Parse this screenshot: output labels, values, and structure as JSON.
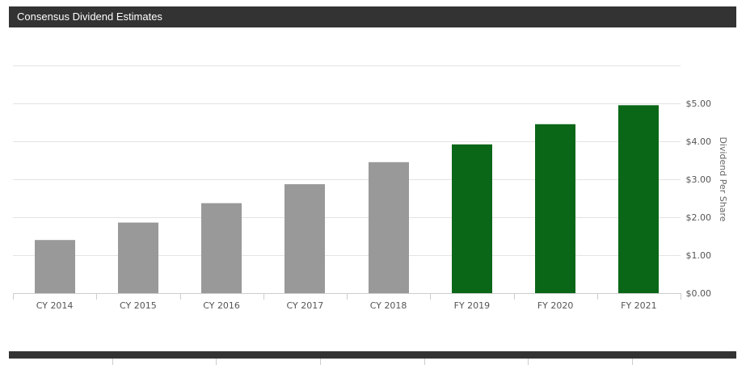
{
  "header": {
    "title": "Consensus Dividend Estimates"
  },
  "colors": {
    "historical": "#999999",
    "estimate": "#0b6718",
    "header_bg": "#333333",
    "grid": "#e3e3e3"
  },
  "chart_data": {
    "type": "bar",
    "title": "Consensus Dividend Estimates",
    "xlabel": "",
    "ylabel": "Dividend Per Share",
    "ylim": [
      0,
      6
    ],
    "yticks": [
      0,
      1,
      2,
      3,
      4,
      5
    ],
    "ytick_labels": [
      "$0.00",
      "$1.00",
      "$2.00",
      "$3.00",
      "$4.00",
      "$5.00"
    ],
    "y_axis_position": "right",
    "grid": true,
    "categories": [
      "CY 2014",
      "CY 2015",
      "CY 2016",
      "CY 2017",
      "CY 2018",
      "FY 2019",
      "FY 2020",
      "FY 2021"
    ],
    "values": [
      1.4,
      1.86,
      2.37,
      2.87,
      3.45,
      3.92,
      4.45,
      4.95
    ],
    "bar_types": [
      "historical",
      "historical",
      "historical",
      "historical",
      "historical",
      "estimate",
      "estimate",
      "estimate"
    ]
  }
}
